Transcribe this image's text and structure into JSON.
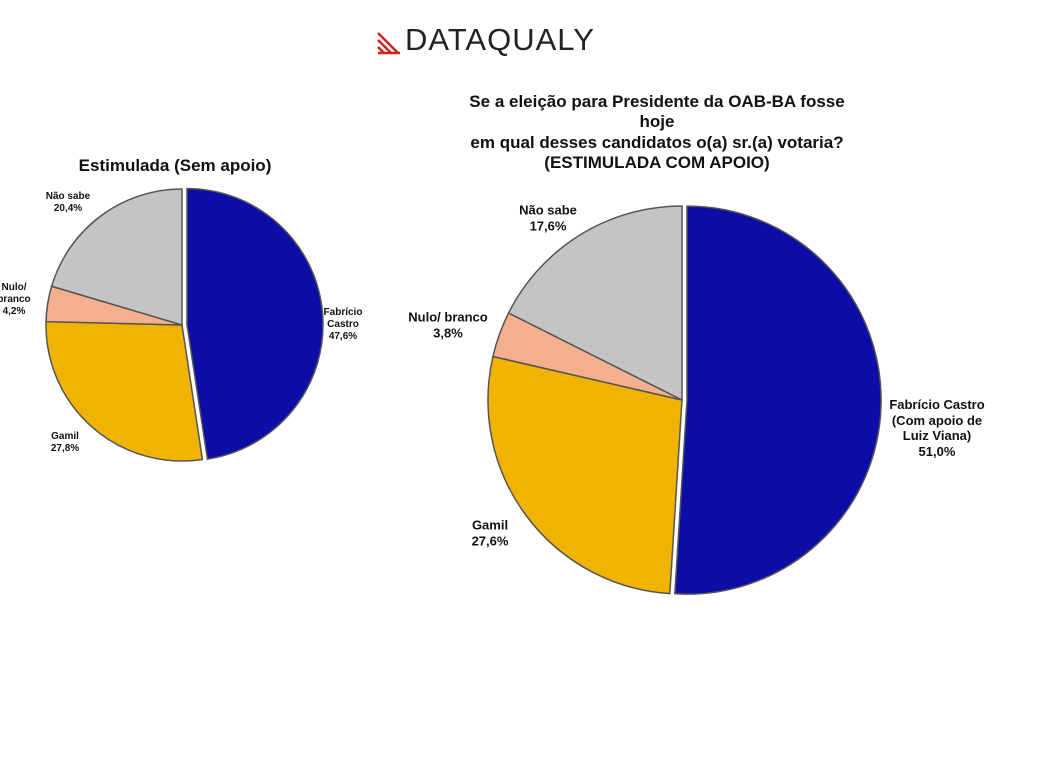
{
  "logo": "DATAQUALY",
  "chart_data": [
    {
      "type": "pie",
      "title": "Estimulada (Sem apoio)",
      "categories": [
        "Fabrício\nCastro",
        "Gamil",
        "Nulo/\nbranco",
        "Não sabe"
      ],
      "values": [
        47.6,
        27.8,
        4.2,
        20.4
      ],
      "value_labels": [
        "47,6%",
        "27,8%",
        "4,2%",
        "20,4%"
      ],
      "colors": [
        "#0c0ca6",
        "#f0b400",
        "#f4b08c",
        "#c4c4c4"
      ]
    },
    {
      "type": "pie",
      "title": "Se a eleição para Presidente da OAB-BA fosse hoje\nem qual desses candidatos o(a) sr.(a) votaria?\n(ESTIMULADA COM APOIO)",
      "categories": [
        "Fabrício Castro\n(Com apoio de\nLuiz Viana)",
        "Gamil",
        "Nulo/ branco",
        "Não sabe"
      ],
      "values": [
        51.0,
        27.6,
        3.8,
        17.6
      ],
      "value_labels": [
        "51,0%",
        "27,6%",
        "3,8%",
        "17,6%"
      ],
      "colors": [
        "#0c0ca6",
        "#f0b400",
        "#f4b08c",
        "#c4c4c4"
      ]
    }
  ]
}
